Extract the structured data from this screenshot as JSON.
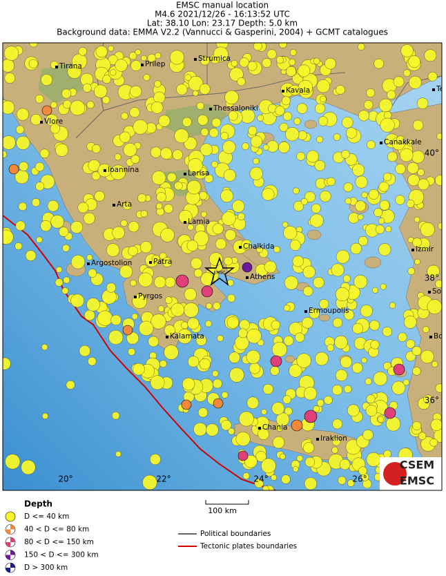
{
  "header": {
    "lines": [
      "EMSC manual location",
      "M4.6  2021/12/26 - 16:13:52 UTC",
      "Lat: 38.10    Lon: 23.17     Depth:  5.0 km",
      "Background data: EMMA V2.2 (Vannucci & Gasperini, 2004) + GCMT catalogues"
    ]
  },
  "map": {
    "cities": [
      "Tirana",
      "Prilep",
      "Strumica",
      "Kavala",
      "Thessaloniki",
      "Vlore",
      "Canakkale",
      "Ioannina",
      "Larisa",
      "Arta",
      "Lamia",
      "Chalkida",
      "Izmir",
      "Argostolion",
      "Patra",
      "Athens",
      "Pyrgos",
      "Ermoupolis",
      "Kalamata",
      "Chania",
      "Iraklion",
      "Te",
      "Soe",
      "Bod"
    ],
    "epicenter_label": "EMSC",
    "lon_labels": [
      "20°",
      "22°",
      "24°",
      "26°"
    ],
    "lat_labels": [
      "40°",
      "38°",
      "36°"
    ],
    "scale_label": "100 km"
  },
  "legend": {
    "title": "Depth",
    "depth_classes": [
      "D <= 40 km",
      "40 < D <= 80 km",
      "80 < D <= 150 km",
      "150 < D <= 300 km",
      "D > 300 km"
    ],
    "lines": [
      "Political boundaries",
      "Tectonic plates boundaries"
    ]
  },
  "logo": {
    "top": "CSEM",
    "bottom": "EMSC"
  }
}
